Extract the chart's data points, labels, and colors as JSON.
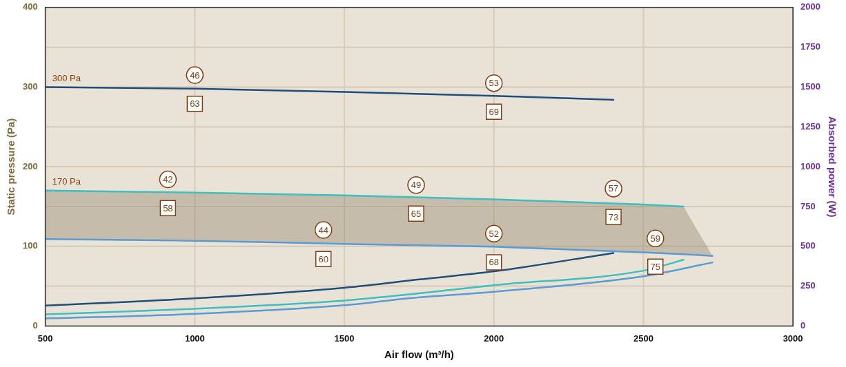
{
  "chart_data": {
    "type": "line",
    "xlabel": "Air flow (m³/h)",
    "ylabel": "Static pressure (Pa)",
    "y2label": "Absorbed power (W)",
    "xlim": [
      500,
      3000
    ],
    "xticks": [
      500,
      1000,
      1500,
      2000,
      2500,
      3000
    ],
    "ylim": [
      0,
      400
    ],
    "yticks": [
      0,
      100,
      200,
      300,
      400
    ],
    "y2lim": [
      0,
      2000
    ],
    "y2ticks": [
      0,
      250,
      500,
      750,
      1000,
      1250,
      1500,
      1750,
      2000
    ],
    "grid": true,
    "legend": false,
    "marker": "none",
    "line_style": "solid",
    "series": [
      {
        "name": "300 Pa",
        "color": "#1f4e79",
        "axis": "y",
        "x": [
          500,
          1000,
          1500,
          2000,
          2400
        ],
        "values": [
          300,
          298,
          294,
          289,
          284
        ]
      },
      {
        "name": "170 Pa",
        "color": "#3dbfbf",
        "axis": "y",
        "x": [
          500,
          1000,
          1500,
          2000,
          2500,
          2634
        ],
        "values": [
          170,
          167.5,
          164,
          159,
          152.5,
          150
        ]
      },
      {
        "color": "#5b9bd5",
        "axis": "y",
        "x": [
          500,
          1000,
          1500,
          2000,
          2500,
          2634,
          2731
        ],
        "values": [
          109,
          107,
          103,
          99.5,
          92.5,
          90,
          88
        ],
        "lower": [
          109,
          107,
          103,
          99.5,
          92.5,
          90,
          88
        ],
        "upper": [
          170,
          167.5,
          164,
          159,
          152.5,
          150,
          88
        ]
      },
      {
        "color": "#1f4e79",
        "axis": "y2",
        "x": [
          500,
          1000,
          1500,
          1750,
          2000,
          2400
        ],
        "values": [
          128,
          174,
          240,
          292,
          343,
          458
        ]
      },
      {
        "color": "#3dbfbf",
        "axis": "y2",
        "x": [
          500,
          1000,
          1500,
          1750,
          2000,
          2500,
          2634
        ],
        "values": [
          73,
          108,
          160,
          205,
          256,
          347,
          416
        ]
      },
      {
        "color": "#5b9bd5",
        "axis": "y2",
        "x": [
          500,
          1000,
          1500,
          1715,
          2000,
          2500,
          2731
        ],
        "values": [
          47,
          76,
          130,
          174,
          215,
          312,
          399
        ]
      }
    ],
    "annotations": [
      {
        "text": "46",
        "x": 1000,
        "y": 315
      },
      {
        "text": "63",
        "x": 1000,
        "y": 279
      },
      {
        "text": "53",
        "x": 2000,
        "y": 305
      },
      {
        "text": "69",
        "x": 2000,
        "y": 269
      },
      {
        "text": "42",
        "x": 910,
        "y": 184
      },
      {
        "text": "58",
        "x": 910,
        "y": 148
      },
      {
        "text": "49",
        "x": 1740,
        "y": 177
      },
      {
        "text": "65",
        "x": 1740,
        "y": 141
      },
      {
        "text": "57",
        "x": 2400,
        "y": 172.5
      },
      {
        "text": "73",
        "x": 2400,
        "y": 137
      },
      {
        "text": "44",
        "x": 1430,
        "y": 120.5
      },
      {
        "text": "60",
        "x": 1430,
        "y": 84
      },
      {
        "text": "52",
        "x": 2000,
        "y": 116
      },
      {
        "text": "68",
        "x": 2000,
        "y": 80
      },
      {
        "text": "59",
        "x": 2540,
        "y": 110
      },
      {
        "text": "75",
        "x": 2540,
        "y": 74.5
      }
    ]
  }
}
